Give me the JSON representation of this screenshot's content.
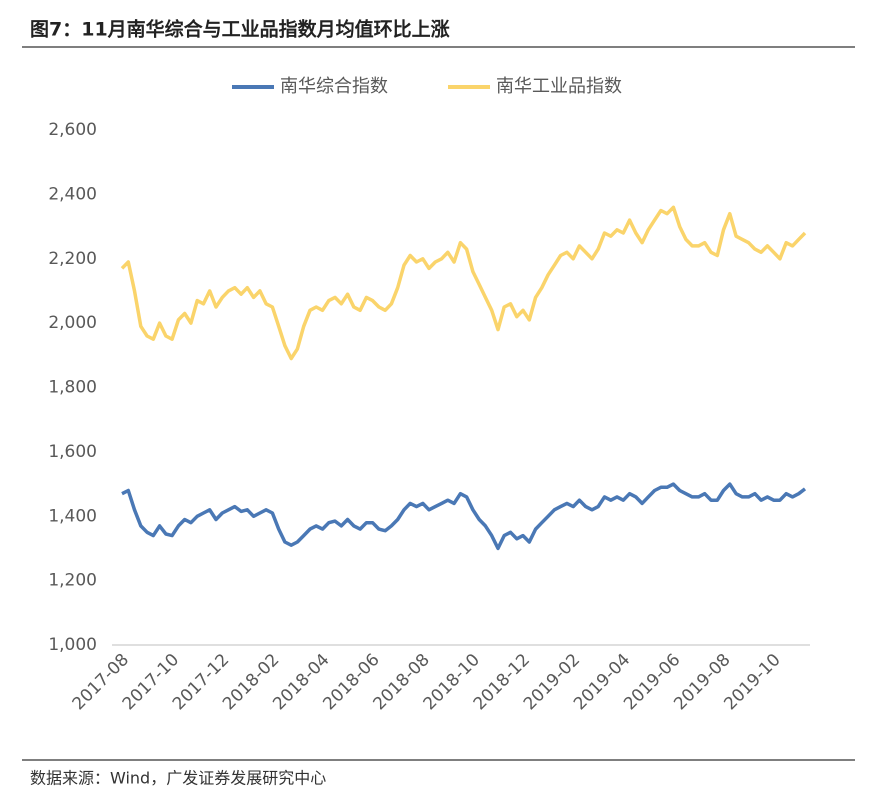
{
  "chart_data": {
    "type": "line",
    "title": "图7：11月南华综合与工业品指数月均值环比上涨",
    "source": "数据来源：Wind，广发证券发展研究中心",
    "categories": [
      "2017-08",
      null,
      null,
      null,
      null,
      null,
      null,
      null,
      "2017-10",
      null,
      null,
      null,
      null,
      null,
      null,
      null,
      "2017-12",
      null,
      null,
      null,
      null,
      null,
      null,
      null,
      "2018-02",
      null,
      null,
      null,
      null,
      null,
      null,
      null,
      "2018-04",
      null,
      null,
      null,
      null,
      null,
      null,
      null,
      "2018-06",
      null,
      null,
      null,
      null,
      null,
      null,
      null,
      "2018-08",
      null,
      null,
      null,
      null,
      null,
      null,
      null,
      "2018-10",
      null,
      null,
      null,
      null,
      null,
      null,
      null,
      "2018-12",
      null,
      null,
      null,
      null,
      null,
      null,
      null,
      "2019-02",
      null,
      null,
      null,
      null,
      null,
      null,
      null,
      "2019-04",
      null,
      null,
      null,
      null,
      null,
      null,
      null,
      "2019-06",
      null,
      null,
      null,
      null,
      null,
      null,
      null,
      "2019-08",
      null,
      null,
      null,
      null,
      null,
      null,
      null,
      "2019-10",
      null,
      null,
      null,
      null,
      null
    ],
    "series": [
      {
        "name": "南华综合指数",
        "color": "#4a78b5",
        "values": [
          1470,
          1480,
          1420,
          1370,
          1350,
          1340,
          1370,
          1345,
          1340,
          1370,
          1390,
          1380,
          1400,
          1410,
          1420,
          1390,
          1410,
          1420,
          1430,
          1415,
          1420,
          1400,
          1410,
          1420,
          1410,
          1360,
          1320,
          1310,
          1320,
          1340,
          1360,
          1370,
          1360,
          1380,
          1385,
          1370,
          1390,
          1370,
          1360,
          1380,
          1380,
          1360,
          1355,
          1370,
          1390,
          1420,
          1440,
          1430,
          1440,
          1420,
          1430,
          1440,
          1450,
          1440,
          1470,
          1460,
          1420,
          1390,
          1370,
          1340,
          1300,
          1340,
          1350,
          1330,
          1340,
          1320,
          1360,
          1380,
          1400,
          1420,
          1430,
          1440,
          1430,
          1450,
          1430,
          1420,
          1430,
          1460,
          1450,
          1460,
          1450,
          1470,
          1460,
          1440,
          1460,
          1480,
          1490,
          1490,
          1500,
          1480,
          1470,
          1460,
          1460,
          1470,
          1450,
          1450,
          1480,
          1500,
          1470,
          1460,
          1460,
          1470,
          1450,
          1460,
          1450,
          1450,
          1470,
          1460,
          1470,
          1485
        ]
      },
      {
        "name": "南华工业品指数",
        "color": "#fad46b",
        "values": [
          2170,
          2190,
          2100,
          1990,
          1960,
          1950,
          2000,
          1960,
          1950,
          2010,
          2030,
          2000,
          2070,
          2060,
          2100,
          2050,
          2080,
          2100,
          2110,
          2090,
          2110,
          2080,
          2100,
          2060,
          2050,
          1990,
          1930,
          1890,
          1920,
          1990,
          2040,
          2050,
          2040,
          2070,
          2080,
          2060,
          2090,
          2050,
          2040,
          2080,
          2070,
          2050,
          2040,
          2060,
          2110,
          2180,
          2210,
          2190,
          2200,
          2170,
          2190,
          2200,
          2220,
          2190,
          2250,
          2230,
          2160,
          2120,
          2080,
          2040,
          1980,
          2050,
          2060,
          2020,
          2040,
          2010,
          2080,
          2110,
          2150,
          2180,
          2210,
          2220,
          2200,
          2240,
          2220,
          2200,
          2230,
          2280,
          2270,
          2290,
          2280,
          2320,
          2280,
          2250,
          2290,
          2320,
          2350,
          2340,
          2360,
          2300,
          2260,
          2240,
          2240,
          2250,
          2220,
          2210,
          2290,
          2340,
          2270,
          2260,
          2250,
          2230,
          2220,
          2240,
          2220,
          2200,
          2250,
          2240,
          2260,
          2280
        ]
      }
    ],
    "ylim": [
      1000,
      2600
    ],
    "yticks": [
      {
        "value": 1000,
        "label": "1,000"
      },
      {
        "value": 1200,
        "label": "1,200"
      },
      {
        "value": 1400,
        "label": "1,400"
      },
      {
        "value": 1600,
        "label": "1,600"
      },
      {
        "value": 1800,
        "label": "1,800"
      },
      {
        "value": 2000,
        "label": "2,000"
      },
      {
        "value": 2200,
        "label": "2,200"
      },
      {
        "value": 2400,
        "label": "2,400"
      },
      {
        "value": 2600,
        "label": "2,600"
      }
    ],
    "legend": "top"
  }
}
